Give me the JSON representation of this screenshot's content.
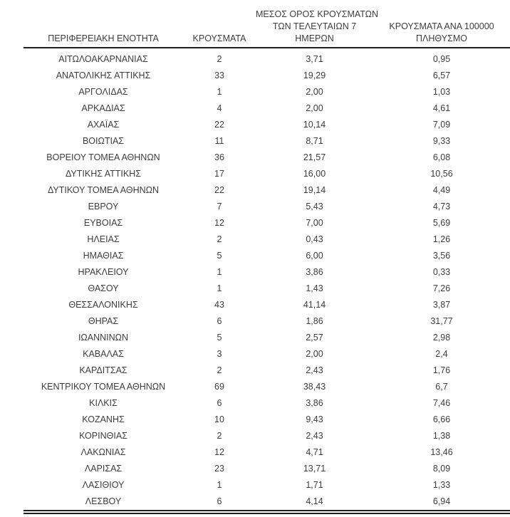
{
  "colors": {
    "background": "#ffffff",
    "text": "#3d3d3d",
    "rule": "#1f1f1f"
  },
  "table": {
    "headers": {
      "col1": "ΠΕΡΙΦΕΡΕΙΑΚΗ ΕΝΟΤΗΤΑ",
      "col2": "ΚΡΟΥΣΜΑΤΑ",
      "col3_lines": [
        "ΜΕΣΟΣ ΟΡΟΣ ΚΡΟΥΣΜΑΤΩΝ",
        "ΤΩΝ ΤΕΛΕΥΤΑΙΩΝ 7",
        "ΗΜΕΡΩΝ"
      ],
      "col4_lines": [
        "ΚΡΟΥΣΜΑΤΑ ΑΝΑ 100000",
        "ΠΛΗΘΥΣΜΟ"
      ]
    },
    "rows": [
      [
        "ΑΙΤΩΛΟΑΚΑΡΝΑΝΙΑΣ",
        "2",
        "3,71",
        "0,95"
      ],
      [
        "ΑΝΑΤΟΛΙΚΗΣ ΑΤΤΙΚΗΣ",
        "33",
        "19,29",
        "6,57"
      ],
      [
        "ΑΡΓΟΛΙΔΑΣ",
        "1",
        "2,00",
        "1,03"
      ],
      [
        "ΑΡΚΑΔΙΑΣ",
        "4",
        "2,00",
        "4,61"
      ],
      [
        "ΑΧΑΪΑΣ",
        "22",
        "10,14",
        "7,09"
      ],
      [
        "ΒΟΙΩΤΙΑΣ",
        "11",
        "8,71",
        "9,33"
      ],
      [
        "ΒΟΡΕΙΟΥ ΤΟΜΕΑ ΑΘΗΝΩΝ",
        "36",
        "21,57",
        "6,08"
      ],
      [
        "ΔΥΤΙΚΗΣ ΑΤΤΙΚΗΣ",
        "17",
        "16,00",
        "10,56"
      ],
      [
        "ΔΥΤΙΚΟΥ ΤΟΜΕΑ ΑΘΗΝΩΝ",
        "22",
        "19,14",
        "4,49"
      ],
      [
        "ΕΒΡΟΥ",
        "7",
        "5,43",
        "4,73"
      ],
      [
        "ΕΥΒΟΙΑΣ",
        "12",
        "7,00",
        "5,69"
      ],
      [
        "ΗΛΕΙΑΣ",
        "2",
        "0,43",
        "1,26"
      ],
      [
        "ΗΜΑΘΙΑΣ",
        "5",
        "6,00",
        "3,56"
      ],
      [
        "ΗΡΑΚΛΕΙΟΥ",
        "1",
        "3,86",
        "0,33"
      ],
      [
        "ΘΑΣΟΥ",
        "1",
        "1,43",
        "7,26"
      ],
      [
        "ΘΕΣΣΑΛΟΝΙΚΗΣ",
        "43",
        "41,14",
        "3,87"
      ],
      [
        "ΘΗΡΑΣ",
        "6",
        "1,86",
        "31,77"
      ],
      [
        "ΙΩΑΝΝΙΝΩΝ",
        "5",
        "2,57",
        "2,98"
      ],
      [
        "ΚΑΒΑΛΑΣ",
        "3",
        "2,00",
        "2,4"
      ],
      [
        "ΚΑΡΔΙΤΣΑΣ",
        "2",
        "2,43",
        "1,76"
      ],
      [
        "ΚΕΝΤΡΙΚΟΥ ΤΟΜΕΑ ΑΘΗΝΩΝ",
        "69",
        "38,43",
        "6,7"
      ],
      [
        "ΚΙΛΚΙΣ",
        "6",
        "3,86",
        "7,46"
      ],
      [
        "ΚΟΖΑΝΗΣ",
        "10",
        "9,43",
        "6,66"
      ],
      [
        "ΚΟΡΙΝΘΙΑΣ",
        "2",
        "2,43",
        "1,38"
      ],
      [
        "ΛΑΚΩΝΙΑΣ",
        "12",
        "4,71",
        "13,46"
      ],
      [
        "ΛΑΡΙΣΑΣ",
        "23",
        "13,71",
        "8,09"
      ],
      [
        "ΛΑΣΙΘΙΟΥ",
        "1",
        "1,71",
        "1,33"
      ],
      [
        "ΛΕΣΒΟΥ",
        "6",
        "4,14",
        "6,94"
      ]
    ]
  }
}
